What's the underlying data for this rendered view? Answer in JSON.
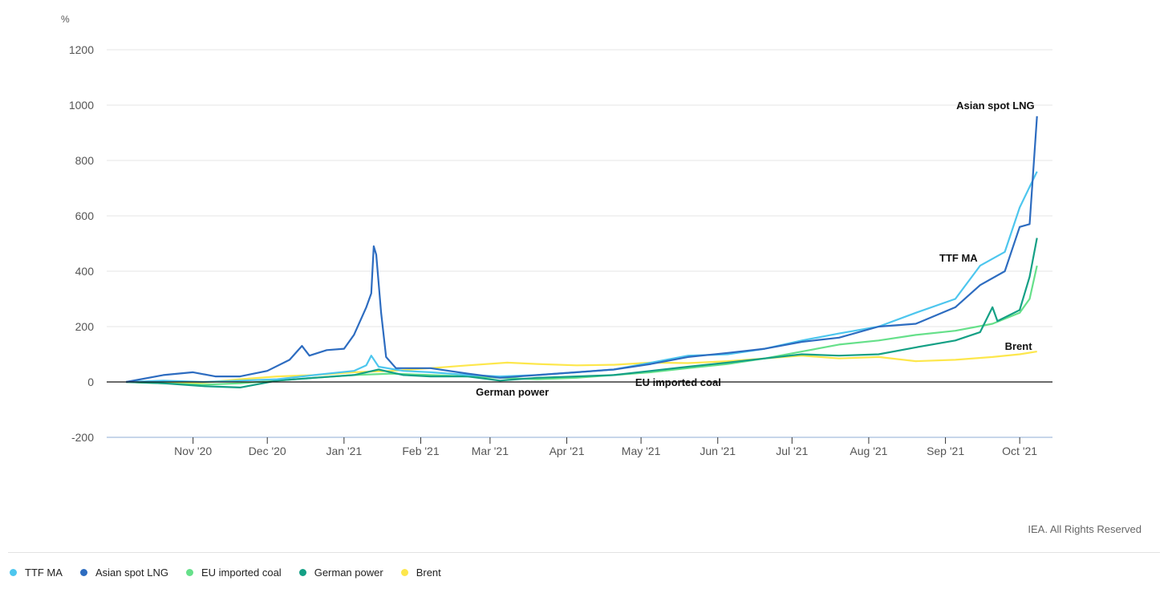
{
  "chart_data": {
    "type": "line",
    "y_unit": "%",
    "ylim": [
      -200,
      1200
    ],
    "y_ticks": [
      -200,
      0,
      200,
      400,
      600,
      800,
      1000,
      1200
    ],
    "x_range": [
      "2020-10-01",
      "2021-10-11"
    ],
    "x_ticks": [
      {
        "date": "2020-11-01",
        "label": "Nov '20"
      },
      {
        "date": "2020-12-01",
        "label": "Dec '20"
      },
      {
        "date": "2021-01-01",
        "label": "Jan '21"
      },
      {
        "date": "2021-02-01",
        "label": "Feb '21"
      },
      {
        "date": "2021-03-01",
        "label": "Mar '21"
      },
      {
        "date": "2021-04-01",
        "label": "Apr '21"
      },
      {
        "date": "2021-05-01",
        "label": "May '21"
      },
      {
        "date": "2021-06-01",
        "label": "Jun '21"
      },
      {
        "date": "2021-07-01",
        "label": "Jul '21"
      },
      {
        "date": "2021-08-01",
        "label": "Aug '21"
      },
      {
        "date": "2021-09-01",
        "label": "Sep '21"
      },
      {
        "date": "2021-10-01",
        "label": "Oct '21"
      }
    ],
    "grid": true,
    "legend_position": "bottom",
    "series": [
      {
        "name": "Brent",
        "color": "#fde74c",
        "points": [
          [
            "2020-10-05",
            0
          ],
          [
            "2020-10-20",
            -5
          ],
          [
            "2020-11-05",
            -3
          ],
          [
            "2020-11-20",
            10
          ],
          [
            "2020-12-05",
            20
          ],
          [
            "2020-12-20",
            25
          ],
          [
            "2021-01-05",
            35
          ],
          [
            "2021-01-20",
            40
          ],
          [
            "2021-02-05",
            50
          ],
          [
            "2021-02-20",
            60
          ],
          [
            "2021-03-08",
            70
          ],
          [
            "2021-03-20",
            65
          ],
          [
            "2021-04-05",
            60
          ],
          [
            "2021-04-20",
            62
          ],
          [
            "2021-05-05",
            70
          ],
          [
            "2021-05-20",
            68
          ],
          [
            "2021-06-05",
            75
          ],
          [
            "2021-06-20",
            85
          ],
          [
            "2021-07-05",
            95
          ],
          [
            "2021-07-20",
            85
          ],
          [
            "2021-08-05",
            90
          ],
          [
            "2021-08-20",
            75
          ],
          [
            "2021-09-05",
            80
          ],
          [
            "2021-09-20",
            90
          ],
          [
            "2021-10-01",
            100
          ],
          [
            "2021-10-08",
            110
          ]
        ]
      },
      {
        "name": "EU imported coal",
        "color": "#66e08a",
        "points": [
          [
            "2020-10-05",
            0
          ],
          [
            "2020-10-20",
            -5
          ],
          [
            "2020-11-05",
            -10
          ],
          [
            "2020-11-20",
            -5
          ],
          [
            "2020-12-05",
            5
          ],
          [
            "2020-12-20",
            15
          ],
          [
            "2021-01-05",
            25
          ],
          [
            "2021-01-20",
            30
          ],
          [
            "2021-02-05",
            25
          ],
          [
            "2021-02-20",
            20
          ],
          [
            "2021-03-05",
            15
          ],
          [
            "2021-03-20",
            10
          ],
          [
            "2021-04-05",
            15
          ],
          [
            "2021-04-20",
            25
          ],
          [
            "2021-05-05",
            35
          ],
          [
            "2021-05-20",
            50
          ],
          [
            "2021-06-05",
            65
          ],
          [
            "2021-06-20",
            85
          ],
          [
            "2021-07-05",
            110
          ],
          [
            "2021-07-20",
            135
          ],
          [
            "2021-08-05",
            150
          ],
          [
            "2021-08-20",
            170
          ],
          [
            "2021-09-05",
            185
          ],
          [
            "2021-09-20",
            210
          ],
          [
            "2021-10-01",
            250
          ],
          [
            "2021-10-05",
            300
          ],
          [
            "2021-10-08",
            420
          ]
        ]
      },
      {
        "name": "German power",
        "color": "#14a085",
        "points": [
          [
            "2020-10-05",
            0
          ],
          [
            "2020-10-20",
            -5
          ],
          [
            "2020-11-05",
            -15
          ],
          [
            "2020-11-20",
            -20
          ],
          [
            "2020-12-05",
            5
          ],
          [
            "2020-12-20",
            15
          ],
          [
            "2021-01-05",
            25
          ],
          [
            "2021-01-15",
            45
          ],
          [
            "2021-01-25",
            25
          ],
          [
            "2021-02-05",
            20
          ],
          [
            "2021-02-20",
            20
          ],
          [
            "2021-03-05",
            5
          ],
          [
            "2021-03-20",
            15
          ],
          [
            "2021-04-05",
            20
          ],
          [
            "2021-04-20",
            25
          ],
          [
            "2021-05-05",
            40
          ],
          [
            "2021-05-20",
            55
          ],
          [
            "2021-06-05",
            70
          ],
          [
            "2021-06-20",
            85
          ],
          [
            "2021-07-05",
            100
          ],
          [
            "2021-07-20",
            95
          ],
          [
            "2021-08-05",
            100
          ],
          [
            "2021-08-20",
            125
          ],
          [
            "2021-09-05",
            150
          ],
          [
            "2021-09-15",
            180
          ],
          [
            "2021-09-20",
            270
          ],
          [
            "2021-09-22",
            220
          ],
          [
            "2021-10-01",
            260
          ],
          [
            "2021-10-05",
            380
          ],
          [
            "2021-10-08",
            520
          ]
        ]
      },
      {
        "name": "TTF MA",
        "color": "#4dc6ee",
        "points": [
          [
            "2020-10-05",
            0
          ],
          [
            "2020-10-20",
            5
          ],
          [
            "2020-11-05",
            0
          ],
          [
            "2020-11-20",
            5
          ],
          [
            "2020-12-05",
            10
          ],
          [
            "2020-12-20",
            25
          ],
          [
            "2021-01-05",
            40
          ],
          [
            "2021-01-10",
            60
          ],
          [
            "2021-01-12",
            95
          ],
          [
            "2021-01-15",
            55
          ],
          [
            "2021-01-25",
            40
          ],
          [
            "2021-02-05",
            35
          ],
          [
            "2021-02-20",
            25
          ],
          [
            "2021-03-05",
            20
          ],
          [
            "2021-03-20",
            25
          ],
          [
            "2021-04-05",
            35
          ],
          [
            "2021-04-20",
            45
          ],
          [
            "2021-05-05",
            70
          ],
          [
            "2021-05-20",
            95
          ],
          [
            "2021-06-05",
            100
          ],
          [
            "2021-06-20",
            120
          ],
          [
            "2021-07-05",
            150
          ],
          [
            "2021-07-20",
            175
          ],
          [
            "2021-08-05",
            200
          ],
          [
            "2021-08-20",
            250
          ],
          [
            "2021-09-05",
            300
          ],
          [
            "2021-09-15",
            420
          ],
          [
            "2021-09-25",
            470
          ],
          [
            "2021-10-01",
            630
          ],
          [
            "2021-10-08",
            760
          ]
        ]
      },
      {
        "name": "Asian spot LNG",
        "color": "#2d6cc0",
        "points": [
          [
            "2020-10-05",
            0
          ],
          [
            "2020-10-20",
            25
          ],
          [
            "2020-11-01",
            35
          ],
          [
            "2020-11-10",
            20
          ],
          [
            "2020-11-20",
            20
          ],
          [
            "2020-12-01",
            40
          ],
          [
            "2020-12-10",
            80
          ],
          [
            "2020-12-15",
            130
          ],
          [
            "2020-12-18",
            95
          ],
          [
            "2020-12-25",
            115
          ],
          [
            "2021-01-01",
            120
          ],
          [
            "2021-01-05",
            170
          ],
          [
            "2021-01-10",
            270
          ],
          [
            "2021-01-12",
            320
          ],
          [
            "2021-01-13",
            490
          ],
          [
            "2021-01-14",
            460
          ],
          [
            "2021-01-16",
            250
          ],
          [
            "2021-01-18",
            90
          ],
          [
            "2021-01-22",
            50
          ],
          [
            "2021-02-05",
            50
          ],
          [
            "2021-02-20",
            30
          ],
          [
            "2021-03-05",
            15
          ],
          [
            "2021-03-20",
            25
          ],
          [
            "2021-04-05",
            35
          ],
          [
            "2021-04-20",
            45
          ],
          [
            "2021-05-05",
            65
          ],
          [
            "2021-05-20",
            90
          ],
          [
            "2021-06-05",
            105
          ],
          [
            "2021-06-20",
            120
          ],
          [
            "2021-07-05",
            145
          ],
          [
            "2021-07-20",
            160
          ],
          [
            "2021-08-05",
            200
          ],
          [
            "2021-08-20",
            210
          ],
          [
            "2021-09-05",
            270
          ],
          [
            "2021-09-15",
            350
          ],
          [
            "2021-09-25",
            400
          ],
          [
            "2021-10-01",
            560
          ],
          [
            "2021-10-05",
            570
          ],
          [
            "2021-10-08",
            960
          ]
        ]
      }
    ],
    "annotations": [
      {
        "text": "Asian spot LNG",
        "x": "2021-10-07",
        "y": 1000,
        "anchor": "end"
      },
      {
        "text": "TTF MA",
        "x": "2021-09-14",
        "y": 450,
        "anchor": "end"
      },
      {
        "text": "Brent",
        "x": "2021-10-06",
        "y": 130,
        "anchor": "end"
      },
      {
        "text": "German power",
        "x": "2021-03-10",
        "y": -35,
        "anchor": "middle"
      },
      {
        "text": "EU imported coal",
        "x": "2021-05-16",
        "y": 0,
        "anchor": "middle"
      }
    ]
  },
  "credit": "IEA. All Rights Reserved",
  "legend": [
    {
      "name": "TTF MA",
      "color": "#4dc6ee"
    },
    {
      "name": "Asian spot LNG",
      "color": "#2d6cc0"
    },
    {
      "name": "EU imported coal",
      "color": "#66e08a"
    },
    {
      "name": "German power",
      "color": "#14a085"
    },
    {
      "name": "Brent",
      "color": "#fde74c"
    }
  ]
}
